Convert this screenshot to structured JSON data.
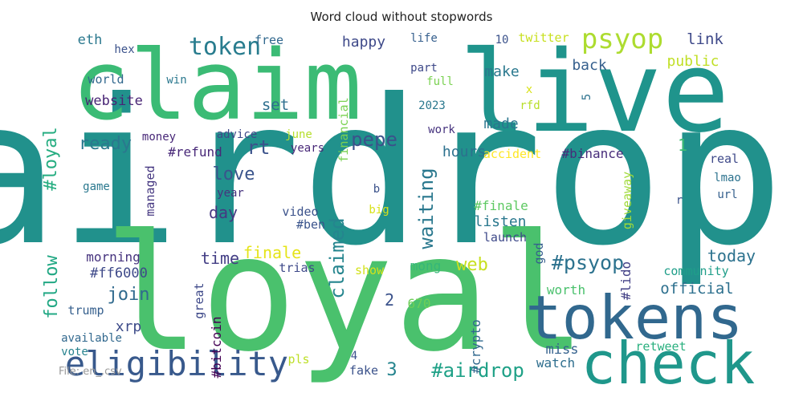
{
  "chart_data": {
    "type": "wordcloud",
    "title": "Word cloud without stopwords",
    "colormap": "viridis",
    "background": "#ffffff",
    "words": [
      {
        "text": "airdrop",
        "weight": 1.0,
        "color": "#21918c",
        "vertical": false
      },
      {
        "text": "loyal",
        "weight": 0.78,
        "color": "#4ac16d",
        "vertical": false
      },
      {
        "text": "claim",
        "weight": 0.62,
        "color": "#3bbb75",
        "vertical": false
      },
      {
        "text": "live",
        "weight": 0.6,
        "color": "#1f948c",
        "vertical": false
      },
      {
        "text": "tokens",
        "weight": 0.34,
        "color": "#31688e",
        "vertical": false
      },
      {
        "text": "check",
        "weight": 0.34,
        "color": "#1f978b",
        "vertical": false
      },
      {
        "text": "eligibility",
        "weight": 0.18,
        "color": "#38598c",
        "vertical": false
      },
      {
        "text": "psyop",
        "weight": 0.14,
        "color": "#addc30",
        "vertical": false
      },
      {
        "text": "token",
        "weight": 0.13,
        "color": "#287c8e",
        "vertical": false
      },
      {
        "text": "#psyop",
        "weight": 0.11,
        "color": "#2c728e",
        "vertical": false
      },
      {
        "text": "claimed",
        "weight": 0.1,
        "color": "#25858e",
        "vertical": true
      },
      {
        "text": "#airdrop",
        "weight": 0.1,
        "color": "#1fa187",
        "vertical": false
      },
      {
        "text": "pepe",
        "weight": 0.09,
        "color": "#3b528b",
        "vertical": false
      },
      {
        "text": "waiting",
        "weight": 0.09,
        "color": "#2a788e",
        "vertical": true
      },
      {
        "text": "ready",
        "weight": 0.09,
        "color": "#2a788e",
        "vertical": false
      },
      {
        "text": "love",
        "weight": 0.09,
        "color": "#3a548c",
        "vertical": false
      },
      {
        "text": "rt",
        "weight": 0.09,
        "color": "#3b528b",
        "vertical": false
      },
      {
        "text": "join",
        "weight": 0.09,
        "color": "#306a8e",
        "vertical": false
      },
      {
        "text": "#loyal",
        "weight": 0.08,
        "color": "#26ad81",
        "vertical": true
      },
      {
        "text": "follow",
        "weight": 0.08,
        "color": "#22a884",
        "vertical": true
      },
      {
        "text": "web",
        "weight": 0.08,
        "color": "#c8e020",
        "vertical": false
      },
      {
        "text": "time",
        "weight": 0.08,
        "color": "#433e85",
        "vertical": false
      },
      {
        "text": "day",
        "weight": 0.08,
        "color": "#453882",
        "vertical": false
      },
      {
        "text": "finale",
        "weight": 0.07,
        "color": "#e5e419",
        "vertical": false
      },
      {
        "text": "today",
        "weight": 0.07,
        "color": "#2c728e",
        "vertical": false
      },
      {
        "text": "official",
        "weight": 0.07,
        "color": "#2d708e",
        "vertical": false
      },
      {
        "text": "link",
        "weight": 0.07,
        "color": "#3e4989",
        "vertical": false
      },
      {
        "text": "set",
        "weight": 0.07,
        "color": "#2e6f8e",
        "vertical": false
      },
      {
        "text": "3",
        "weight": 0.07,
        "color": "#25848e",
        "vertical": false
      },
      {
        "text": "1",
        "weight": 0.07,
        "color": "#3dbc74",
        "vertical": false
      },
      {
        "text": "2",
        "weight": 0.07,
        "color": "#3b528b",
        "vertical": false
      },
      {
        "text": "happy",
        "weight": 0.06,
        "color": "#3e4989",
        "vertical": false
      },
      {
        "text": "back",
        "weight": 0.06,
        "color": "#355f8d",
        "vertical": false
      },
      {
        "text": "make",
        "weight": 0.06,
        "color": "#2a788e",
        "vertical": false
      },
      {
        "text": "made",
        "weight": 0.06,
        "color": "#2a768e",
        "vertical": false
      },
      {
        "text": "hours",
        "weight": 0.06,
        "color": "#2c718e",
        "vertical": false
      },
      {
        "text": "listen",
        "weight": 0.06,
        "color": "#2a788e",
        "vertical": false
      },
      {
        "text": "xrp",
        "weight": 0.06,
        "color": "#3e4c8a",
        "vertical": false
      },
      {
        "text": "mong",
        "weight": 0.06,
        "color": "#35b779",
        "vertical": false
      },
      {
        "text": "public",
        "weight": 0.06,
        "color": "#c0df25",
        "vertical": false
      },
      {
        "text": "eth",
        "weight": 0.06,
        "color": "#2a788e",
        "vertical": false
      },
      {
        "text": "website",
        "weight": 0.06,
        "color": "#482475",
        "vertical": false
      },
      {
        "text": "#ff6000",
        "weight": 0.06,
        "color": "#3e4989",
        "vertical": false
      },
      {
        "text": "morning",
        "weight": 0.05,
        "color": "#46337e",
        "vertical": false
      },
      {
        "text": "miss",
        "weight": 0.05,
        "color": "#34618d",
        "vertical": false
      },
      {
        "text": "watch",
        "weight": 0.05,
        "color": "#2e6e8e",
        "vertical": false
      },
      {
        "text": "worth",
        "weight": 0.05,
        "color": "#4ac16d",
        "vertical": false
      },
      {
        "text": "community",
        "weight": 0.05,
        "color": "#1f9e89",
        "vertical": false
      },
      {
        "text": "retweet",
        "weight": 0.05,
        "color": "#2ab07f",
        "vertical": false
      },
      {
        "text": "#finale",
        "weight": 0.05,
        "color": "#5ec962",
        "vertical": false
      },
      {
        "text": "#binance",
        "weight": 0.05,
        "color": "#472c7a",
        "vertical": false
      },
      {
        "text": "#refund",
        "weight": 0.05,
        "color": "#482878",
        "vertical": false
      },
      {
        "text": "#ben",
        "weight": 0.05,
        "color": "#3a548c",
        "vertical": false
      },
      {
        "text": "#bitcoin",
        "weight": 0.05,
        "color": "#440154",
        "vertical": true
      },
      {
        "text": "#crypto",
        "weight": 0.05,
        "color": "#31688e",
        "vertical": true
      },
      {
        "text": "#lido",
        "weight": 0.05,
        "color": "#424086",
        "vertical": true
      },
      {
        "text": "financial",
        "weight": 0.05,
        "color": "#7ad151",
        "vertical": true
      },
      {
        "text": "giveaway",
        "weight": 0.05,
        "color": "#a0da39",
        "vertical": true
      },
      {
        "text": "managed",
        "weight": 0.05,
        "color": "#453781",
        "vertical": true
      },
      {
        "text": "great",
        "weight": 0.05,
        "color": "#3e4989",
        "vertical": true
      },
      {
        "text": "god",
        "weight": 0.05,
        "color": "#355f8d",
        "vertical": true
      },
      {
        "text": "670",
        "weight": 0.05,
        "color": "#6ece58",
        "vertical": false
      },
      {
        "text": "accident",
        "weight": 0.05,
        "color": "#fde725",
        "vertical": false
      },
      {
        "text": "launch",
        "weight": 0.05,
        "color": "#3e4989",
        "vertical": false
      },
      {
        "text": "video",
        "weight": 0.05,
        "color": "#3b528b",
        "vertical": false
      },
      {
        "text": "trias",
        "weight": 0.05,
        "color": "#3e4989",
        "vertical": false
      },
      {
        "text": "show",
        "weight": 0.05,
        "color": "#d2e21b",
        "vertical": false
      },
      {
        "text": "fake",
        "weight": 0.05,
        "color": "#3b528b",
        "vertical": false
      },
      {
        "text": "pls",
        "weight": 0.05,
        "color": "#bddf26",
        "vertical": false
      },
      {
        "text": "vote",
        "weight": 0.05,
        "color": "#26828e",
        "vertical": false
      },
      {
        "text": "available",
        "weight": 0.05,
        "color": "#31688e",
        "vertical": false
      },
      {
        "text": "trump",
        "weight": 0.05,
        "color": "#355f8d",
        "vertical": false
      },
      {
        "text": "game",
        "weight": 0.05,
        "color": "#2a788e",
        "vertical": false
      },
      {
        "text": "year",
        "weight": 0.05,
        "color": "#46337e",
        "vertical": false
      },
      {
        "text": "years",
        "weight": 0.05,
        "color": "#482878",
        "vertical": false
      },
      {
        "text": "june",
        "weight": 0.05,
        "color": "#b5de2b",
        "vertical": false
      },
      {
        "text": "advice",
        "weight": 0.05,
        "color": "#3e4989",
        "vertical": false
      },
      {
        "text": "money",
        "weight": 0.05,
        "color": "#482878",
        "vertical": false
      },
      {
        "text": "work",
        "weight": 0.05,
        "color": "#46337e",
        "vertical": false
      },
      {
        "text": "world",
        "weight": 0.05,
        "color": "#31688e",
        "vertical": false
      },
      {
        "text": "win",
        "weight": 0.05,
        "color": "#2a788e",
        "vertical": false
      },
      {
        "text": "hex",
        "weight": 0.05,
        "color": "#3b528b",
        "vertical": false
      },
      {
        "text": "free",
        "weight": 0.05,
        "color": "#31688e",
        "vertical": false
      },
      {
        "text": "life",
        "weight": 0.05,
        "color": "#355f8d",
        "vertical": false
      },
      {
        "text": "part",
        "weight": 0.05,
        "color": "#3e4989",
        "vertical": false
      },
      {
        "text": "full",
        "weight": 0.05,
        "color": "#7ad151",
        "vertical": false
      },
      {
        "text": "2023",
        "weight": 0.05,
        "color": "#2a788e",
        "vertical": false
      },
      {
        "text": "10",
        "weight": 0.05,
        "color": "#3b528b",
        "vertical": false
      },
      {
        "text": "twitter",
        "weight": 0.05,
        "color": "#c8e020",
        "vertical": false
      },
      {
        "text": "x",
        "weight": 0.05,
        "color": "#d8e219",
        "vertical": false
      },
      {
        "text": "rfd",
        "weight": 0.05,
        "color": "#b8de29",
        "vertical": false
      },
      {
        "text": "5",
        "weight": 0.05,
        "color": "#2c728e",
        "vertical": true
      },
      {
        "text": "b",
        "weight": 0.05,
        "color": "#3b528b",
        "vertical": false
      },
      {
        "text": "big",
        "weight": 0.05,
        "color": "#d8e219",
        "vertical": false
      },
      {
        "text": "r",
        "weight": 0.05,
        "color": "#3b528b",
        "vertical": false
      },
      {
        "text": "real",
        "weight": 0.05,
        "color": "#3e4989",
        "vertical": false
      },
      {
        "text": "lmao",
        "weight": 0.05,
        "color": "#2c728e",
        "vertical": false
      },
      {
        "text": "url",
        "weight": 0.05,
        "color": "#35608d",
        "vertical": false
      },
      {
        "text": "4",
        "weight": 0.05,
        "color": "#3b528b",
        "vertical": false
      }
    ]
  },
  "footer": {
    "source_note": "File: en_.csv"
  }
}
